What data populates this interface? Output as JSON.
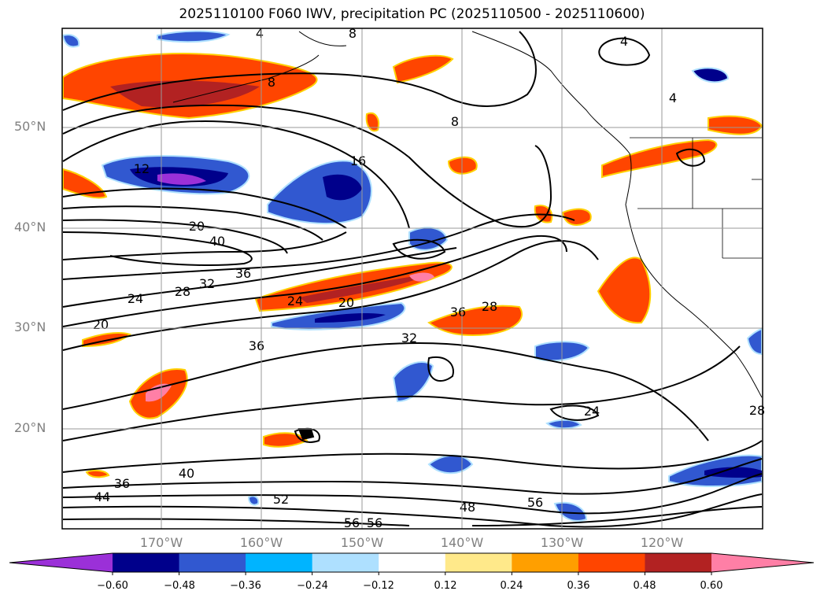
{
  "title": "2025110100 F060 IWV, precipitation PC (2025110500 - 2025110600)",
  "lat_labels": [
    "50°N",
    "40°N",
    "30°N",
    "20°N"
  ],
  "lon_labels": [
    "170°W",
    "160°W",
    "150°W",
    "140°W",
    "130°W",
    "120°W"
  ],
  "colorbar": {
    "ticks": [
      "−0.60",
      "−0.48",
      "−0.36",
      "−0.24",
      "−0.12",
      "0.12",
      "0.24",
      "0.36",
      "0.48",
      "0.60"
    ],
    "colors": [
      "#9b30d8",
      "#00008b",
      "#3158d0",
      "#00b4ff",
      "#aee0ff",
      "#ffffff",
      "#ffe98a",
      "#ff9f00",
      "#ff4500",
      "#b22222",
      "#ff7fa6"
    ]
  },
  "contour_labels": [
    "4",
    "8",
    "4",
    "8",
    "8",
    "4",
    "12",
    "16",
    "20",
    "40",
    "36",
    "32",
    "28",
    "24",
    "20",
    "24",
    "20",
    "36",
    "36",
    "28",
    "32",
    "24",
    "40",
    "36",
    "44",
    "52",
    "56",
    "56",
    "48",
    "56",
    "28"
  ]
}
